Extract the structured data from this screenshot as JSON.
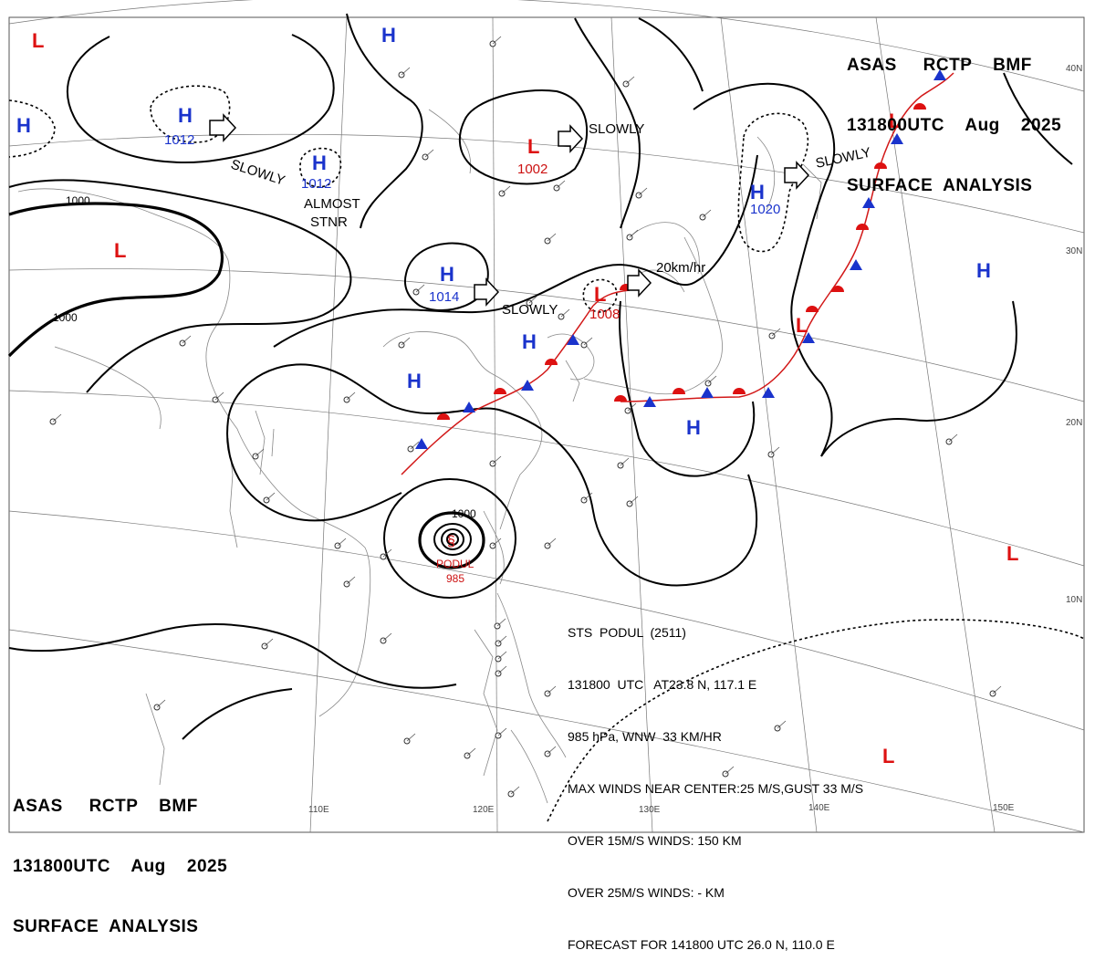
{
  "header": {
    "line1": "ASAS     RCTP    BMF",
    "line2": "131800UTC    Aug    2025",
    "line3": "SURFACE  ANALYSIS"
  },
  "footer_header": {
    "line1": "ASAS     RCTP    BMF",
    "line2": "131800UTC    Aug    2025",
    "line3": "SURFACE  ANALYSIS"
  },
  "typhoon_info": {
    "line1": "STS  PODUL  (2511)",
    "line2": "131800  UTC   AT23.8 N, 117.1 E",
    "line3": "985 hPa, WNW  33 KM/HR",
    "line4": "MAX WINDS NEAR CENTER:25 M/S,GUST 33 M/S",
    "line5": "OVER 15M/S WINDS: 150 KM",
    "line6": "OVER 25M/S WINDS: - KM",
    "line7": "FORECAST FOR 141800 UTC 26.0 N, 110.0 E"
  },
  "typhoon_label": {
    "name": "PODUL",
    "pressure": "985"
  },
  "systems": [
    {
      "type": "H",
      "pressure": "1012",
      "color": "#1a33cc"
    },
    {
      "type": "H",
      "pressure": "1012",
      "color": "#1a33cc"
    },
    {
      "type": "H",
      "pressure": "1014",
      "color": "#1a33cc"
    },
    {
      "type": "H",
      "pressure": "1020",
      "color": "#1a33cc"
    },
    {
      "type": "L",
      "pressure": "1002",
      "color": "#dd1111"
    },
    {
      "type": "L",
      "pressure": "1008",
      "color": "#dd1111"
    }
  ],
  "motions": {
    "slowly": "SLOWLY",
    "almost_stnr_1": "ALMOST",
    "almost_stnr_2": "STNR",
    "speed_20": "20km/hr"
  },
  "isobar_labels": {
    "a": "1000",
    "b": "1000",
    "c": "1000"
  },
  "lat_labels": [
    "40N",
    "30N",
    "20N",
    "10N"
  ],
  "lon_labels": [
    "110E",
    "120E",
    "130E",
    "140E",
    "150E"
  ],
  "colors": {
    "high": "#1a33cc",
    "low": "#dd1111",
    "warm_front": "#dd1111",
    "cold_front": "#1a33cc"
  }
}
